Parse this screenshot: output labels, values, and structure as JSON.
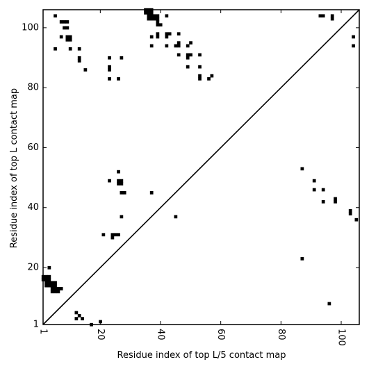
{
  "chart_data": {
    "type": "heatmap",
    "title": "",
    "xlabel": "Residue index of top L/5 contact map",
    "ylabel": "Residue index of top L contact map",
    "xlim": [
      1,
      106
    ],
    "ylim": [
      1,
      106
    ],
    "x_ticks": [
      1,
      20,
      40,
      60,
      80,
      100
    ],
    "y_ticks": [
      1,
      20,
      40,
      60,
      80,
      100
    ],
    "x_tick_labels": [
      "1",
      "20",
      "40",
      "60",
      "80",
      "100"
    ],
    "y_tick_labels": [
      "1",
      "20",
      "40",
      "60",
      "80",
      "100"
    ],
    "x_tick_rotation": -90,
    "diagonal": true,
    "grid": false,
    "cell_color": "#000000",
    "background_color": "#ffffff",
    "upper_triangle_points": [
      [
        5,
        104
      ],
      [
        7,
        102
      ],
      [
        8,
        102
      ],
      [
        9,
        102
      ],
      [
        8,
        100
      ],
      [
        9,
        100
      ],
      [
        7,
        97
      ],
      [
        9,
        97
      ],
      [
        10,
        97
      ],
      [
        9,
        96
      ],
      [
        10,
        96
      ],
      [
        5,
        93
      ],
      [
        10,
        93
      ],
      [
        13,
        93
      ],
      [
        13,
        90
      ],
      [
        13,
        89
      ],
      [
        15,
        86
      ],
      [
        35,
        106
      ],
      [
        36,
        106
      ],
      [
        37,
        106
      ],
      [
        35,
        105
      ],
      [
        36,
        105
      ],
      [
        37,
        105
      ],
      [
        36,
        104
      ],
      [
        37,
        104
      ],
      [
        38,
        104
      ],
      [
        39,
        104
      ],
      [
        42,
        104
      ],
      [
        36,
        103
      ],
      [
        37,
        103
      ],
      [
        38,
        103
      ],
      [
        39,
        103
      ],
      [
        39,
        102
      ],
      [
        39,
        101
      ],
      [
        40,
        101
      ],
      [
        39,
        98
      ],
      [
        42,
        98
      ],
      [
        43,
        98
      ],
      [
        46,
        98
      ],
      [
        39,
        97
      ],
      [
        37,
        97
      ],
      [
        42,
        97
      ],
      [
        37,
        94
      ],
      [
        42,
        94
      ],
      [
        45,
        94
      ],
      [
        46,
        94
      ],
      [
        46,
        95
      ],
      [
        49,
        94
      ],
      [
        50,
        95
      ],
      [
        23,
        90
      ],
      [
        27,
        90
      ],
      [
        23,
        87
      ],
      [
        23,
        86
      ],
      [
        23,
        83
      ],
      [
        26,
        83
      ],
      [
        46,
        91
      ],
      [
        49,
        91
      ],
      [
        50,
        91
      ],
      [
        53,
        91
      ],
      [
        49,
        90
      ],
      [
        49,
        87
      ],
      [
        53,
        87
      ],
      [
        53,
        84
      ],
      [
        53,
        83
      ],
      [
        56,
        83
      ],
      [
        57,
        84
      ],
      [
        93,
        104
      ],
      [
        94,
        104
      ],
      [
        97,
        104
      ],
      [
        97,
        103
      ],
      [
        104,
        97
      ],
      [
        104,
        94
      ]
    ],
    "lower_triangle_points": [
      [
        1,
        17
      ],
      [
        2,
        17
      ],
      [
        3,
        17
      ],
      [
        1,
        16
      ],
      [
        2,
        16
      ],
      [
        3,
        16
      ],
      [
        2,
        15
      ],
      [
        3,
        15
      ],
      [
        4,
        15
      ],
      [
        5,
        15
      ],
      [
        2,
        14
      ],
      [
        3,
        14
      ],
      [
        4,
        14
      ],
      [
        5,
        14
      ],
      [
        4,
        13
      ],
      [
        5,
        13
      ],
      [
        6,
        13
      ],
      [
        7,
        13
      ],
      [
        4,
        12
      ],
      [
        5,
        12
      ],
      [
        6,
        12
      ],
      [
        3,
        20
      ],
      [
        12,
        5
      ],
      [
        13,
        4
      ],
      [
        12,
        3
      ],
      [
        14,
        3
      ],
      [
        17,
        1
      ],
      [
        20,
        2
      ],
      [
        23,
        49
      ],
      [
        26,
        49
      ],
      [
        27,
        49
      ],
      [
        26,
        48
      ],
      [
        27,
        48
      ],
      [
        27,
        45
      ],
      [
        28,
        45
      ],
      [
        37,
        45
      ],
      [
        26,
        52
      ],
      [
        27,
        37
      ],
      [
        45,
        37
      ],
      [
        21,
        31
      ],
      [
        24,
        31
      ],
      [
        25,
        31
      ],
      [
        26,
        31
      ],
      [
        24,
        30
      ],
      [
        87,
        53
      ],
      [
        91,
        49
      ],
      [
        91,
        46
      ],
      [
        94,
        46
      ],
      [
        94,
        42
      ],
      [
        98,
        43
      ],
      [
        98,
        42
      ],
      [
        103,
        39
      ],
      [
        103,
        38
      ],
      [
        105,
        36
      ],
      [
        87,
        23
      ],
      [
        96,
        8
      ]
    ]
  }
}
